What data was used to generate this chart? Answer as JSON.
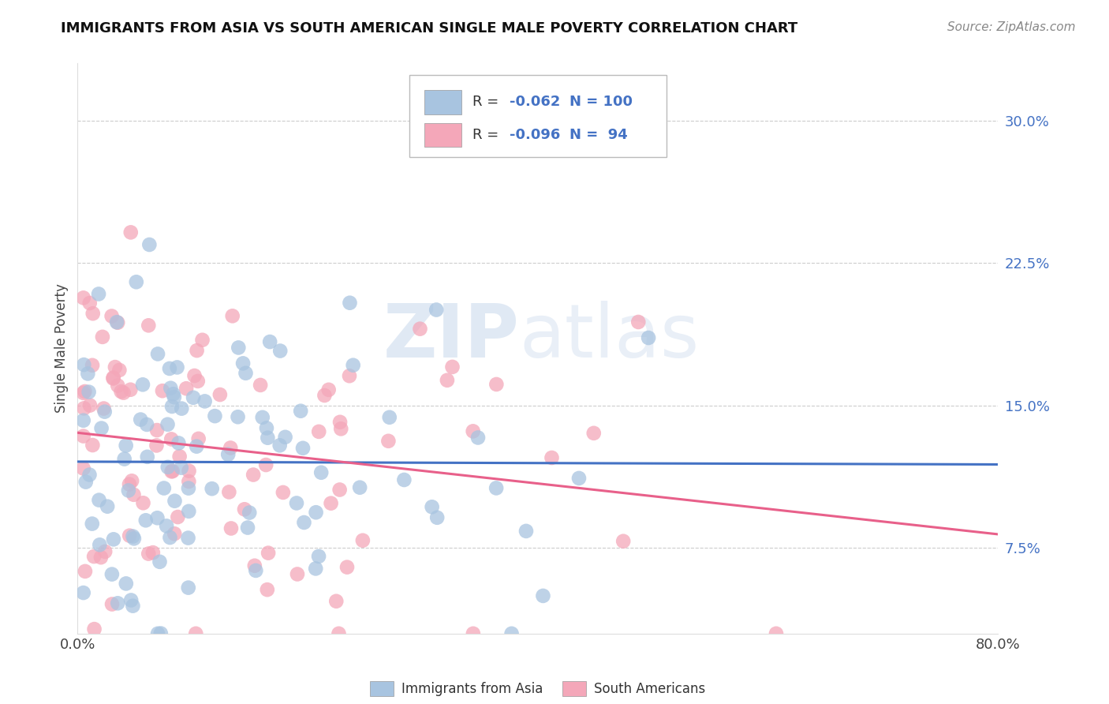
{
  "title": "IMMIGRANTS FROM ASIA VS SOUTH AMERICAN SINGLE MALE POVERTY CORRELATION CHART",
  "source": "Source: ZipAtlas.com",
  "ylabel": "Single Male Poverty",
  "legend_label1": "Immigrants from Asia",
  "legend_label2": "South Americans",
  "R1": -0.062,
  "N1": 100,
  "R2": -0.096,
  "N2": 94,
  "color_asia": "#a8c4e0",
  "color_south": "#f4a7b9",
  "line_color_asia": "#4472c4",
  "line_color_south": "#e8608a",
  "watermark_zip": "ZIP",
  "watermark_atlas": "atlas",
  "yticks": [
    0.075,
    0.15,
    0.225,
    0.3
  ],
  "ytick_labels": [
    "7.5%",
    "15.0%",
    "22.5%",
    "30.0%"
  ],
  "xlim": [
    0.0,
    0.8
  ],
  "ylim": [
    0.03,
    0.33
  ],
  "title_fontsize": 13,
  "source_fontsize": 11,
  "tick_fontsize": 13,
  "legend_fontsize": 12
}
